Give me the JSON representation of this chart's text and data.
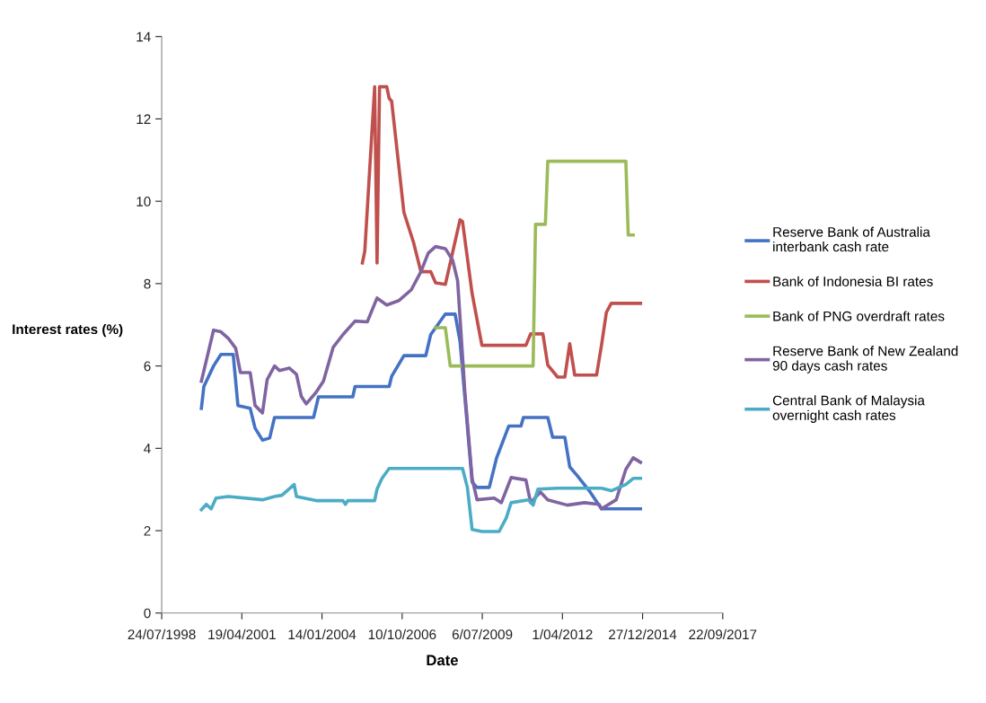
{
  "chart_data": {
    "type": "line",
    "xlabel": "Date",
    "ylabel": "Interest rates (%)",
    "xlim": [
      "1998-07-24",
      "2017-09-22"
    ],
    "xticks": [
      {
        "value": "1998-07-24",
        "label": "24/07/1998"
      },
      {
        "value": "2001-04-19",
        "label": "19/04/2001"
      },
      {
        "value": "2004-01-14",
        "label": "14/01/2004"
      },
      {
        "value": "2006-10-10",
        "label": "10/10/2006"
      },
      {
        "value": "2009-07-06",
        "label": "6/07/2009"
      },
      {
        "value": "2012-04-01",
        "label": "1/04/2012"
      },
      {
        "value": "2014-12-27",
        "label": "27/12/2014"
      },
      {
        "value": "2017-09-22",
        "label": "22/09/2017"
      }
    ],
    "ylim": [
      0,
      14
    ],
    "yticks": [
      0,
      2,
      4,
      6,
      8,
      10,
      12,
      14
    ],
    "grid": false,
    "legend": "right",
    "marker": "none",
    "line_style": "solid",
    "series": [
      {
        "name": "Reserve Bank of Australia\ninterbank cash rate",
        "color": "#4472c4",
        "x": [
          "1999-12",
          "2000-01",
          "2000-05",
          "2000-08",
          "2001-01",
          "2001-03",
          "2001-08",
          "2001-10",
          "2002-01",
          "2002-04",
          "2002-06",
          "2003-10",
          "2003-12",
          "2005-02",
          "2005-03",
          "2006-05",
          "2006-06",
          "2006-11",
          "2007-08",
          "2007-10",
          "2008-04",
          "2008-08",
          "2008-10",
          "2008-12",
          "2009-03",
          "2009-05",
          "2009-10",
          "2010-01",
          "2010-06",
          "2010-11",
          "2010-12",
          "2011-10",
          "2011-12",
          "2012-05",
          "2012-07",
          "2012-10",
          "2013-03",
          "2013-08",
          "2014-12"
        ],
        "values": [
          4.97,
          5.5,
          6.0,
          6.28,
          6.28,
          5.04,
          4.97,
          4.49,
          4.2,
          4.25,
          4.75,
          4.75,
          5.25,
          5.25,
          5.5,
          5.5,
          5.75,
          6.25,
          6.25,
          6.76,
          7.26,
          7.26,
          6.6,
          5.23,
          3.18,
          3.05,
          3.05,
          3.77,
          4.54,
          4.54,
          4.75,
          4.75,
          4.27,
          4.27,
          3.55,
          3.34,
          2.97,
          2.53,
          2.53
        ]
      },
      {
        "name": "Bank of Indonesia BI rates",
        "color": "#c0504d",
        "x": [
          "2005-06",
          "2005-07",
          "2005-11",
          "2005-12",
          "2006-01",
          "2006-04",
          "2006-05",
          "2006-06",
          "2006-11",
          "2007-03",
          "2007-06",
          "2007-10",
          "2007-12",
          "2008-04",
          "2008-10",
          "2008-11",
          "2009-03",
          "2009-07",
          "2011-01",
          "2011-03",
          "2011-08",
          "2011-10",
          "2012-02",
          "2012-05",
          "2012-07",
          "2012-09",
          "2013-06",
          "2013-08",
          "2013-10",
          "2013-12",
          "2014-12"
        ],
        "values": [
          8.5,
          8.79,
          12.78,
          8.5,
          12.78,
          12.78,
          12.5,
          12.43,
          9.73,
          9.0,
          8.29,
          8.29,
          8.02,
          7.98,
          9.55,
          9.51,
          7.76,
          6.5,
          6.5,
          6.78,
          6.78,
          6.02,
          5.73,
          5.73,
          6.54,
          5.78,
          5.78,
          6.5,
          7.3,
          7.52,
          7.52
        ]
      },
      {
        "name": "Bank of PNG overdraft rates",
        "color": "#9bbb59",
        "x": [
          "2007-12",
          "2008-04",
          "2008-06",
          "2011-04",
          "2011-05",
          "2011-09",
          "2011-10",
          "2014-06",
          "2014-07",
          "2014-09"
        ],
        "values": [
          6.93,
          6.93,
          6.0,
          6.0,
          9.44,
          9.44,
          10.97,
          10.97,
          9.18,
          9.18
        ]
      },
      {
        "name": "Reserve Bank of New Zealand\n90 days cash rates",
        "color": "#8064a2",
        "x": [
          "1999-12",
          "2000-05",
          "2000-08",
          "2000-11",
          "2001-02",
          "2001-04",
          "2001-08",
          "2001-10",
          "2002-01",
          "2002-03",
          "2002-06",
          "2002-08",
          "2002-12",
          "2003-03",
          "2003-05",
          "2003-07",
          "2003-11",
          "2004-02",
          "2004-06",
          "2004-10",
          "2005-03",
          "2005-08",
          "2005-12",
          "2006-04",
          "2006-09",
          "2007-02",
          "2007-06",
          "2007-09",
          "2007-12",
          "2008-04",
          "2008-07",
          "2008-09",
          "2008-12",
          "2009-03",
          "2009-05",
          "2009-12",
          "2010-03",
          "2010-07",
          "2011-01",
          "2011-03",
          "2011-07",
          "2011-10",
          "2012-06",
          "2013-01",
          "2013-07",
          "2013-08",
          "2014-02",
          "2014-06",
          "2014-09",
          "2014-12"
        ],
        "values": [
          5.63,
          6.87,
          6.83,
          6.67,
          6.43,
          5.84,
          5.84,
          5.04,
          4.86,
          5.67,
          6.0,
          5.89,
          5.95,
          5.8,
          5.26,
          5.08,
          5.36,
          5.63,
          6.45,
          6.76,
          7.09,
          7.07,
          7.65,
          7.48,
          7.59,
          7.85,
          8.29,
          8.74,
          8.9,
          8.85,
          8.57,
          8.07,
          5.36,
          3.27,
          2.75,
          2.79,
          2.68,
          3.29,
          3.23,
          2.68,
          2.94,
          2.75,
          2.62,
          2.68,
          2.64,
          2.53,
          2.75,
          3.49,
          3.77,
          3.66
        ]
      },
      {
        "name": "Central Bank of Malaysia\novernight cash rates",
        "color": "#4bacc6",
        "x": [
          "1999-12",
          "2000-02",
          "2000-04",
          "2000-06",
          "2000-11",
          "2002-01",
          "2002-06",
          "2002-09",
          "2003-02",
          "2003-03",
          "2003-11",
          "2004-10",
          "2004-11",
          "2004-12",
          "2005-11",
          "2005-12",
          "2006-02",
          "2006-05",
          "2008-11",
          "2009-01",
          "2009-03",
          "2009-07",
          "2010-02",
          "2010-05",
          "2010-07",
          "2011-02",
          "2011-04",
          "2011-06",
          "2012-02",
          "2013-08",
          "2013-12",
          "2014-06",
          "2014-09",
          "2014-12"
        ],
        "values": [
          2.51,
          2.64,
          2.53,
          2.79,
          2.83,
          2.75,
          2.83,
          2.86,
          3.12,
          2.83,
          2.73,
          2.73,
          2.64,
          2.73,
          2.73,
          3.01,
          3.27,
          3.51,
          3.51,
          3.05,
          2.03,
          1.98,
          1.98,
          2.31,
          2.68,
          2.75,
          2.62,
          3.01,
          3.03,
          3.03,
          2.97,
          3.12,
          3.27,
          3.27
        ]
      }
    ]
  }
}
